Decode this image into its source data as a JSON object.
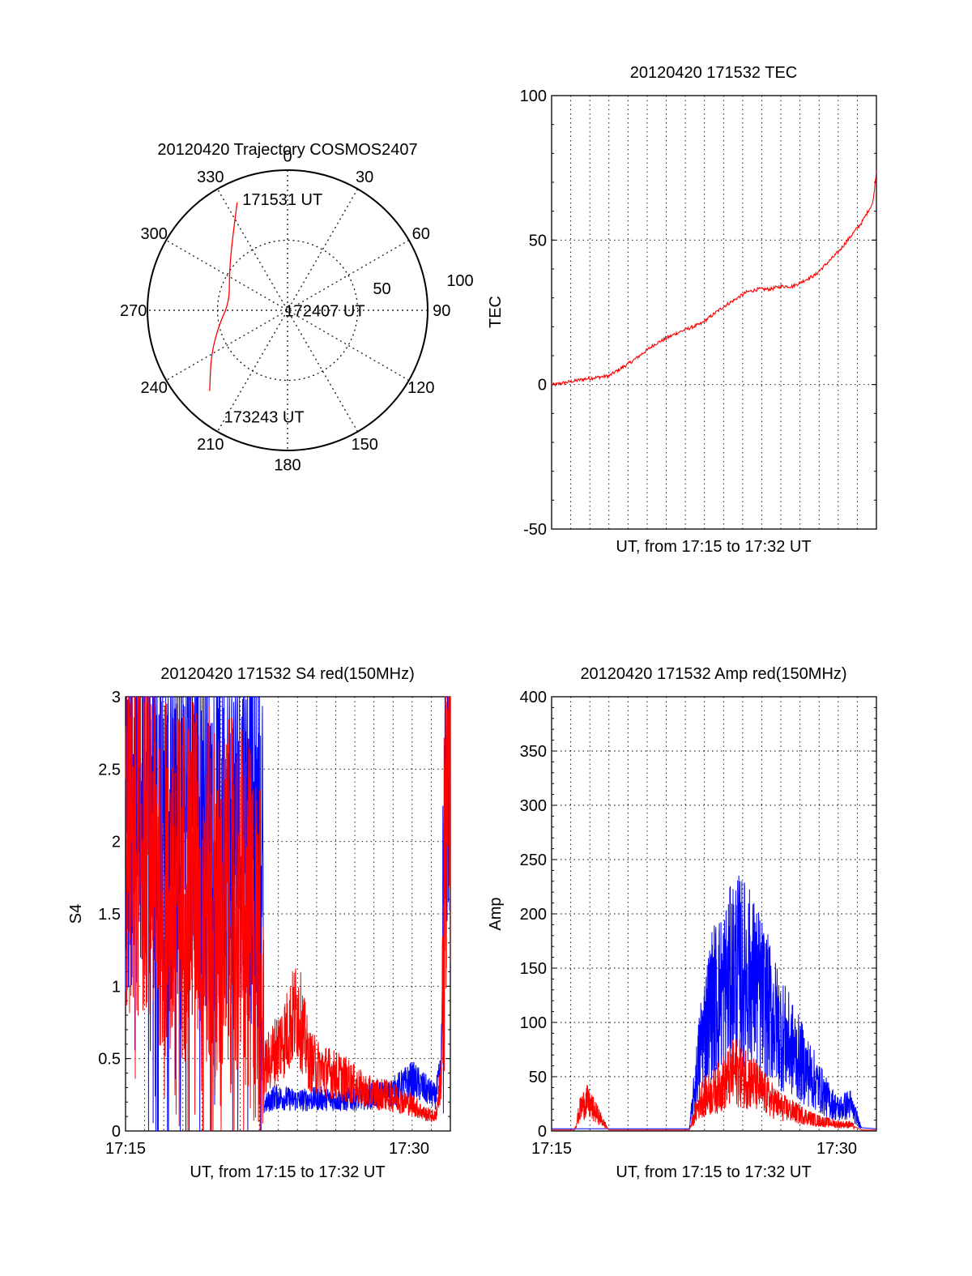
{
  "chart_data": [
    {
      "type": "polar",
      "title": "20120420 Trajectory COSMOS2407",
      "angle_labels": [
        "0",
        "30",
        "60",
        "90",
        "120",
        "150",
        "180",
        "210",
        "240",
        "270",
        "300",
        "330"
      ],
      "radial_labels": [
        "50",
        "100"
      ],
      "rmax": 100,
      "series": [
        {
          "color": "#ff0000",
          "points": [
            {
              "az": 335,
              "r": 85
            },
            {
              "az": 320,
              "r": 62
            },
            {
              "az": 300,
              "r": 48
            },
            {
              "az": 278,
              "r": 42
            },
            {
              "az": 258,
              "r": 50
            },
            {
              "az": 240,
              "r": 63
            },
            {
              "az": 224,
              "r": 80
            }
          ]
        }
      ],
      "annotations": [
        {
          "text": "171531 UT",
          "az": 338,
          "r": 86
        },
        {
          "text": "172407 UT",
          "az": 275,
          "r": 2
        },
        {
          "text": "173243 UT",
          "az": 211,
          "r": 88
        }
      ]
    },
    {
      "type": "line",
      "title": "20120420 171532 TEC",
      "xlabel": "UT, from 17:15 to 17:32 UT",
      "ylabel": "TEC",
      "ylim": [
        -50,
        100
      ],
      "yticks": [
        "-50",
        "0",
        "50",
        "100"
      ],
      "xrange_minutes": [
        17.25,
        17.533
      ],
      "grid": true,
      "series": [
        {
          "color": "#ff0000",
          "x": [
            17.253,
            17.28,
            17.3,
            17.32,
            17.34,
            17.36,
            17.38,
            17.4,
            17.42,
            17.43,
            17.44,
            17.45,
            17.46,
            17.48,
            17.5,
            17.52,
            17.53,
            17.533
          ],
          "y": [
            0,
            2,
            3,
            8,
            14,
            18,
            21,
            27,
            32,
            33,
            33,
            34,
            34,
            38,
            46,
            56,
            63,
            74
          ]
        }
      ]
    },
    {
      "type": "line",
      "title": "20120420 171532 S4 red(150MHz)",
      "xlabel": "UT, from 17:15 to 17:32 UT",
      "ylabel": "S4",
      "ylim": [
        0,
        3
      ],
      "yticks": [
        "0",
        "0.5",
        "1",
        "1.5",
        "2",
        "2.5",
        "3"
      ],
      "xticks": [
        "17:15",
        "17:30"
      ],
      "grid": true,
      "series": [
        {
          "color": "#0000ff",
          "x": [
            17.25,
            17.27,
            17.29,
            17.31,
            17.33,
            17.35,
            17.37,
            17.3705,
            17.38,
            17.4,
            17.42,
            17.44,
            17.46,
            17.48,
            17.5,
            17.51,
            17.52,
            17.525,
            17.53,
            17.533
          ],
          "y": [
            2.2,
            2.4,
            2.1,
            2.3,
            2.0,
            2.2,
            1.8,
            0.15,
            0.2,
            0.18,
            0.19,
            0.18,
            0.2,
            0.22,
            0.3,
            0.25,
            0.2,
            0.35,
            2.5,
            2.8
          ]
        },
        {
          "color": "#ff0000",
          "x": [
            17.25,
            17.27,
            17.29,
            17.31,
            17.33,
            17.35,
            17.37,
            17.3705,
            17.38,
            17.39,
            17.4,
            17.41,
            17.42,
            17.44,
            17.46,
            17.48,
            17.5,
            17.51,
            17.52,
            17.525,
            17.53,
            17.533
          ],
          "y": [
            2.0,
            2.1,
            1.6,
            1.9,
            1.5,
            1.6,
            1.1,
            0.35,
            0.45,
            0.55,
            0.7,
            0.4,
            0.35,
            0.3,
            0.22,
            0.2,
            0.15,
            0.1,
            0.08,
            0.3,
            2.6,
            2.8
          ]
        }
      ]
    },
    {
      "type": "line",
      "title": "20120420 171532 Amp red(150MHz)",
      "xlabel": "UT, from 17:15 to 17:32 UT",
      "ylabel": "Amp",
      "ylim": [
        0,
        400
      ],
      "yticks": [
        "0",
        "50",
        "100",
        "150",
        "200",
        "250",
        "300",
        "350",
        "400"
      ],
      "xticks": [
        "17:15",
        "17:30"
      ],
      "grid": true,
      "series": [
        {
          "color": "#0000ff",
          "x": [
            17.25,
            17.3,
            17.35,
            17.36,
            17.37,
            17.38,
            17.39,
            17.4,
            17.41,
            17.42,
            17.43,
            17.44,
            17.45,
            17.46,
            17.47,
            17.48,
            17.49,
            17.5,
            17.51,
            17.52,
            17.533
          ],
          "y": [
            2,
            2,
            2,
            2,
            2,
            80,
            120,
            130,
            150,
            145,
            130,
            110,
            90,
            75,
            60,
            45,
            30,
            20,
            25,
            3,
            2
          ]
        },
        {
          "color": "#ff0000",
          "x": [
            17.25,
            17.27,
            17.275,
            17.28,
            17.29,
            17.3,
            17.37,
            17.38,
            17.39,
            17.4,
            17.41,
            17.42,
            17.43,
            17.44,
            17.45,
            17.46,
            17.47,
            17.48,
            17.5,
            17.51,
            17.52,
            17.533
          ],
          "y": [
            1,
            1,
            20,
            28,
            15,
            1,
            1,
            30,
            35,
            45,
            55,
            50,
            40,
            30,
            22,
            18,
            14,
            10,
            6,
            6,
            1,
            1
          ]
        }
      ]
    }
  ]
}
